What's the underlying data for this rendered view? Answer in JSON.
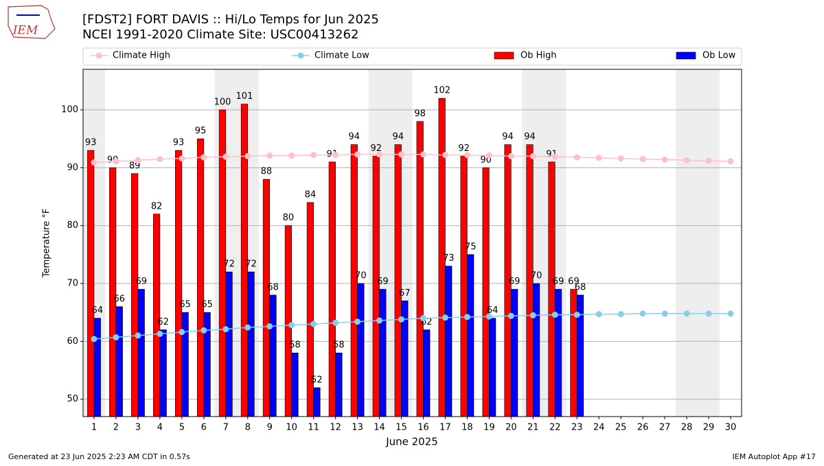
{
  "logo_text": "IEM",
  "footer": {
    "left": "Generated at 23 Jun 2025 2:23 AM CDT in 0.57s",
    "right": "IEM Autoplot App #17"
  },
  "chart_data": {
    "type": "bar",
    "title": "[FDST2] FORT DAVIS :: Hi/Lo Temps for Jun 2025",
    "subtitle": "NCEI 1991-2020 Climate Site: USC00413262",
    "x_label": "June 2025",
    "y_label": "Temperature °F",
    "x": [
      1,
      2,
      3,
      4,
      5,
      6,
      7,
      8,
      9,
      10,
      11,
      12,
      13,
      14,
      15,
      16,
      17,
      18,
      19,
      20,
      21,
      22,
      23,
      24,
      25,
      26,
      27,
      28,
      29,
      30
    ],
    "xlim": [
      0.5,
      30.5
    ],
    "xticks": [
      1,
      2,
      3,
      4,
      5,
      6,
      7,
      8,
      9,
      10,
      11,
      12,
      13,
      14,
      15,
      16,
      17,
      18,
      19,
      20,
      21,
      22,
      23,
      24,
      25,
      26,
      27,
      28,
      29,
      30
    ],
    "ylim": [
      47,
      107
    ],
    "yticks": [
      50,
      60,
      70,
      80,
      90,
      100
    ],
    "grid": true,
    "shaded_days": [
      1,
      7,
      8,
      14,
      15,
      21,
      22,
      28,
      29
    ],
    "shade_color": "#eeeeee",
    "series": [
      {
        "name": "Climate High",
        "type": "line",
        "color": "#ffc0cb",
        "values": [
          90.9,
          91.1,
          91.3,
          91.5,
          91.6,
          91.8,
          91.9,
          92.0,
          92.1,
          92.1,
          92.2,
          92.2,
          92.3,
          92.3,
          92.3,
          92.3,
          92.2,
          92.2,
          92.1,
          92.0,
          92.0,
          91.9,
          91.8,
          91.7,
          91.6,
          91.5,
          91.4,
          91.3,
          91.2,
          91.1
        ]
      },
      {
        "name": "Climate Low",
        "type": "line",
        "color": "#87ceeb",
        "values": [
          60.4,
          60.7,
          61.0,
          61.3,
          61.6,
          61.9,
          62.1,
          62.4,
          62.6,
          62.8,
          63.0,
          63.2,
          63.4,
          63.6,
          63.8,
          64.0,
          64.1,
          64.2,
          64.3,
          64.4,
          64.5,
          64.6,
          64.6,
          64.7,
          64.7,
          64.8,
          64.8,
          64.8,
          64.8,
          64.8
        ]
      },
      {
        "name": "Ob High",
        "type": "bar",
        "color": "#ff0000",
        "values": [
          93,
          90,
          89,
          82,
          93,
          95,
          100,
          101,
          88,
          80,
          84,
          91,
          94,
          92,
          94,
          98,
          102,
          92,
          90,
          94,
          94,
          91,
          69,
          null,
          null,
          null,
          null,
          null,
          null,
          null
        ]
      },
      {
        "name": "Ob Low",
        "type": "bar",
        "color": "#0000ff",
        "values": [
          64,
          66,
          69,
          62,
          65,
          65,
          72,
          72,
          68,
          58,
          52,
          58,
          70,
          69,
          67,
          62,
          73,
          75,
          64,
          69,
          70,
          69,
          68,
          null,
          null,
          null,
          null,
          null,
          null,
          null
        ]
      }
    ]
  }
}
